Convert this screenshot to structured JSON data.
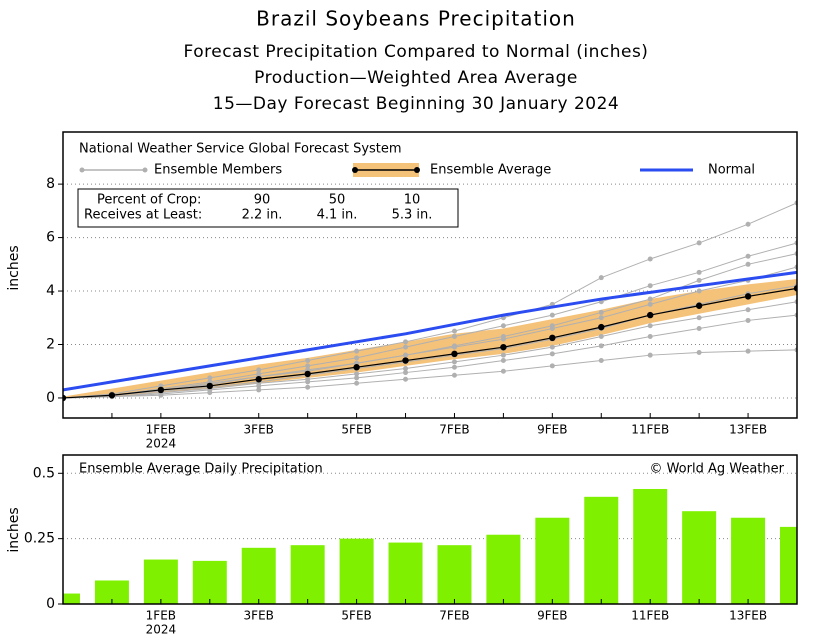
{
  "chart_data": [
    {
      "type": "line",
      "title": "Brazil Soybeans Precipitation",
      "subtitles": [
        "Forecast Precipitation Compared to Normal (inches)",
        "Production—Weighted Area Average",
        "15—Day Forecast Beginning 30 January 2024"
      ],
      "source": "National Weather Service Global Forecast System",
      "ylabel": "inches",
      "categories": [
        null,
        null,
        "1FEB",
        null,
        "3FEB",
        null,
        "5FEB",
        null,
        "7FEB",
        null,
        "9FEB",
        null,
        "11FEB",
        null,
        "13FEB",
        null
      ],
      "x_year": "2024",
      "ylim": [
        -0.75,
        9.95
      ],
      "yticks": [
        0,
        2,
        4,
        6,
        8
      ],
      "grid": true,
      "ensemble_members": {
        "name": "Ensemble Members",
        "color": "#b0b0b0",
        "members": [
          [
            0,
            0.15,
            0.45,
            0.75,
            1.05,
            1.4,
            1.75,
            2.1,
            2.5,
            3.0,
            3.5,
            4.5,
            5.2,
            5.8,
            6.5,
            7.3
          ],
          [
            0,
            0.1,
            0.35,
            0.6,
            0.9,
            1.2,
            1.5,
            1.9,
            2.3,
            2.7,
            3.1,
            3.6,
            4.2,
            4.7,
            5.3,
            5.8
          ],
          [
            0,
            0.1,
            0.3,
            0.5,
            0.8,
            1.0,
            1.3,
            1.6,
            1.9,
            2.2,
            2.6,
            3.0,
            3.5,
            4.0,
            4.4,
            4.9
          ],
          [
            0,
            0.1,
            0.25,
            0.4,
            0.6,
            0.85,
            1.1,
            1.35,
            1.6,
            1.85,
            2.2,
            2.6,
            3.1,
            3.5,
            3.9,
            4.2
          ],
          [
            0,
            0.05,
            0.2,
            0.35,
            0.55,
            0.7,
            0.9,
            1.1,
            1.35,
            1.6,
            1.9,
            2.3,
            2.7,
            3.0,
            3.3,
            3.6
          ],
          [
            0,
            0.05,
            0.15,
            0.3,
            0.45,
            0.6,
            0.75,
            0.95,
            1.15,
            1.4,
            1.65,
            1.95,
            2.3,
            2.6,
            2.9,
            3.1
          ],
          [
            0,
            0.05,
            0.1,
            0.2,
            0.3,
            0.4,
            0.55,
            0.7,
            0.85,
            1.0,
            1.2,
            1.4,
            1.6,
            1.7,
            1.75,
            1.8
          ],
          [
            0,
            0.1,
            0.3,
            0.55,
            0.8,
            1.05,
            1.3,
            1.6,
            1.95,
            2.3,
            2.7,
            3.2,
            3.7,
            4.4,
            5.0,
            5.4
          ]
        ]
      },
      "ensemble_average": {
        "name": "Ensemble Average",
        "color": "#000000",
        "band_color": "#f5c27a",
        "values": [
          0,
          0.1,
          0.3,
          0.45,
          0.7,
          0.9,
          1.15,
          1.4,
          1.65,
          1.9,
          2.25,
          2.65,
          3.1,
          3.45,
          3.8,
          4.1
        ],
        "range_high": [
          0.05,
          0.35,
          0.65,
          0.95,
          1.25,
          1.5,
          1.8,
          2.1,
          2.4,
          2.6,
          2.95,
          3.3,
          3.7,
          4.0,
          4.25,
          4.45
        ],
        "range_low": [
          0,
          0.05,
          0.2,
          0.35,
          0.55,
          0.75,
          0.95,
          1.2,
          1.45,
          1.65,
          1.95,
          2.35,
          2.8,
          3.15,
          3.5,
          3.85
        ]
      },
      "normal": {
        "name": "Normal",
        "color": "#2b4cf0",
        "values": [
          0.3,
          0.6,
          0.9,
          1.2,
          1.5,
          1.8,
          2.1,
          2.4,
          2.75,
          3.1,
          3.4,
          3.7,
          3.95,
          4.2,
          4.45,
          4.7
        ]
      },
      "crop_table": {
        "rows": [
          [
            "Percent of Crop:",
            90,
            50,
            10
          ],
          [
            "Receives at Least:",
            "2.2 in.",
            "4.1 in.",
            "5.3 in."
          ]
        ]
      }
    },
    {
      "type": "bar",
      "title": "Ensemble Average Daily Precipitation",
      "credit": "© World Ag Weather",
      "ylabel": "inches",
      "categories": [
        null,
        null,
        "1FEB",
        null,
        "3FEB",
        null,
        "5FEB",
        null,
        "7FEB",
        null,
        "9FEB",
        null,
        "11FEB",
        null,
        "13FEB",
        null
      ],
      "x_year": "2024",
      "values": [
        0.04,
        0.09,
        0.17,
        0.165,
        0.215,
        0.225,
        0.25,
        0.235,
        0.225,
        0.265,
        0.33,
        0.41,
        0.44,
        0.355,
        0.33,
        0.295
      ],
      "color": "#7ff000",
      "ylim": [
        0,
        0.57
      ],
      "yticks": [
        0,
        0.25,
        0.5
      ],
      "grid": true
    }
  ]
}
